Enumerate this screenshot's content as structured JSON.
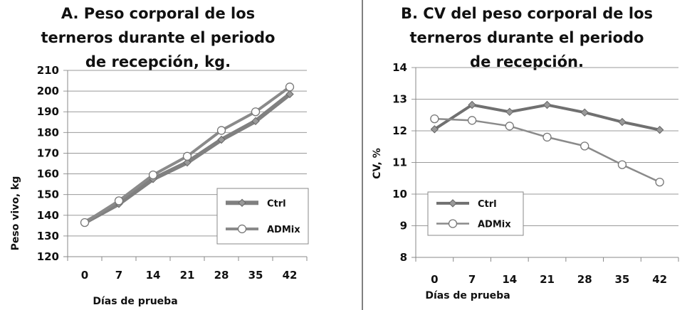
{
  "chart_data": [
    {
      "type": "line",
      "title_lines": [
        "A. Peso corporal de los",
        "terneros durante el periodo",
        "de recepción, kg."
      ],
      "xlabel": "Días de prueba",
      "ylabel": "Peso vivo, kg",
      "categories": [
        "0",
        "7",
        "14",
        "21",
        "28",
        "35",
        "42"
      ],
      "ylim": [
        120,
        210
      ],
      "yticks": [
        "120",
        "130",
        "140",
        "150",
        "160",
        "170",
        "180",
        "190",
        "200",
        "210"
      ],
      "grid": true,
      "legend_placement": "bottom-right",
      "series": [
        {
          "name": "Ctrl",
          "marker": "diamond",
          "color": "#808080",
          "values": [
            136.5,
            145.5,
            157.5,
            165.5,
            176.5,
            185.5,
            198.5
          ]
        },
        {
          "name": "ADMix",
          "marker": "circle",
          "color": "#8a8a8a",
          "values": [
            136.5,
            147,
            159.5,
            168.5,
            181,
            190,
            202
          ]
        }
      ]
    },
    {
      "type": "line",
      "title_lines": [
        "B. CV del peso corporal de los",
        "terneros durante el periodo",
        "de recepción."
      ],
      "xlabel": "Días de prueba",
      "ylabel": "CV, %",
      "categories": [
        "0",
        "7",
        "14",
        "21",
        "28",
        "35",
        "42"
      ],
      "ylim": [
        8,
        14
      ],
      "yticks": [
        "8",
        "9",
        "10",
        "11",
        "12",
        "13",
        "14"
      ],
      "grid": true,
      "legend_placement": "bottom-left",
      "series": [
        {
          "name": "Ctrl",
          "marker": "diamond",
          "color": "#707070",
          "values": [
            12.05,
            12.82,
            12.6,
            12.82,
            12.58,
            12.28,
            12.03
          ]
        },
        {
          "name": "ADMix",
          "marker": "circle",
          "color": "#8a8a8a",
          "values": [
            12.38,
            12.33,
            12.15,
            11.8,
            11.52,
            10.93,
            10.38
          ]
        }
      ]
    }
  ]
}
